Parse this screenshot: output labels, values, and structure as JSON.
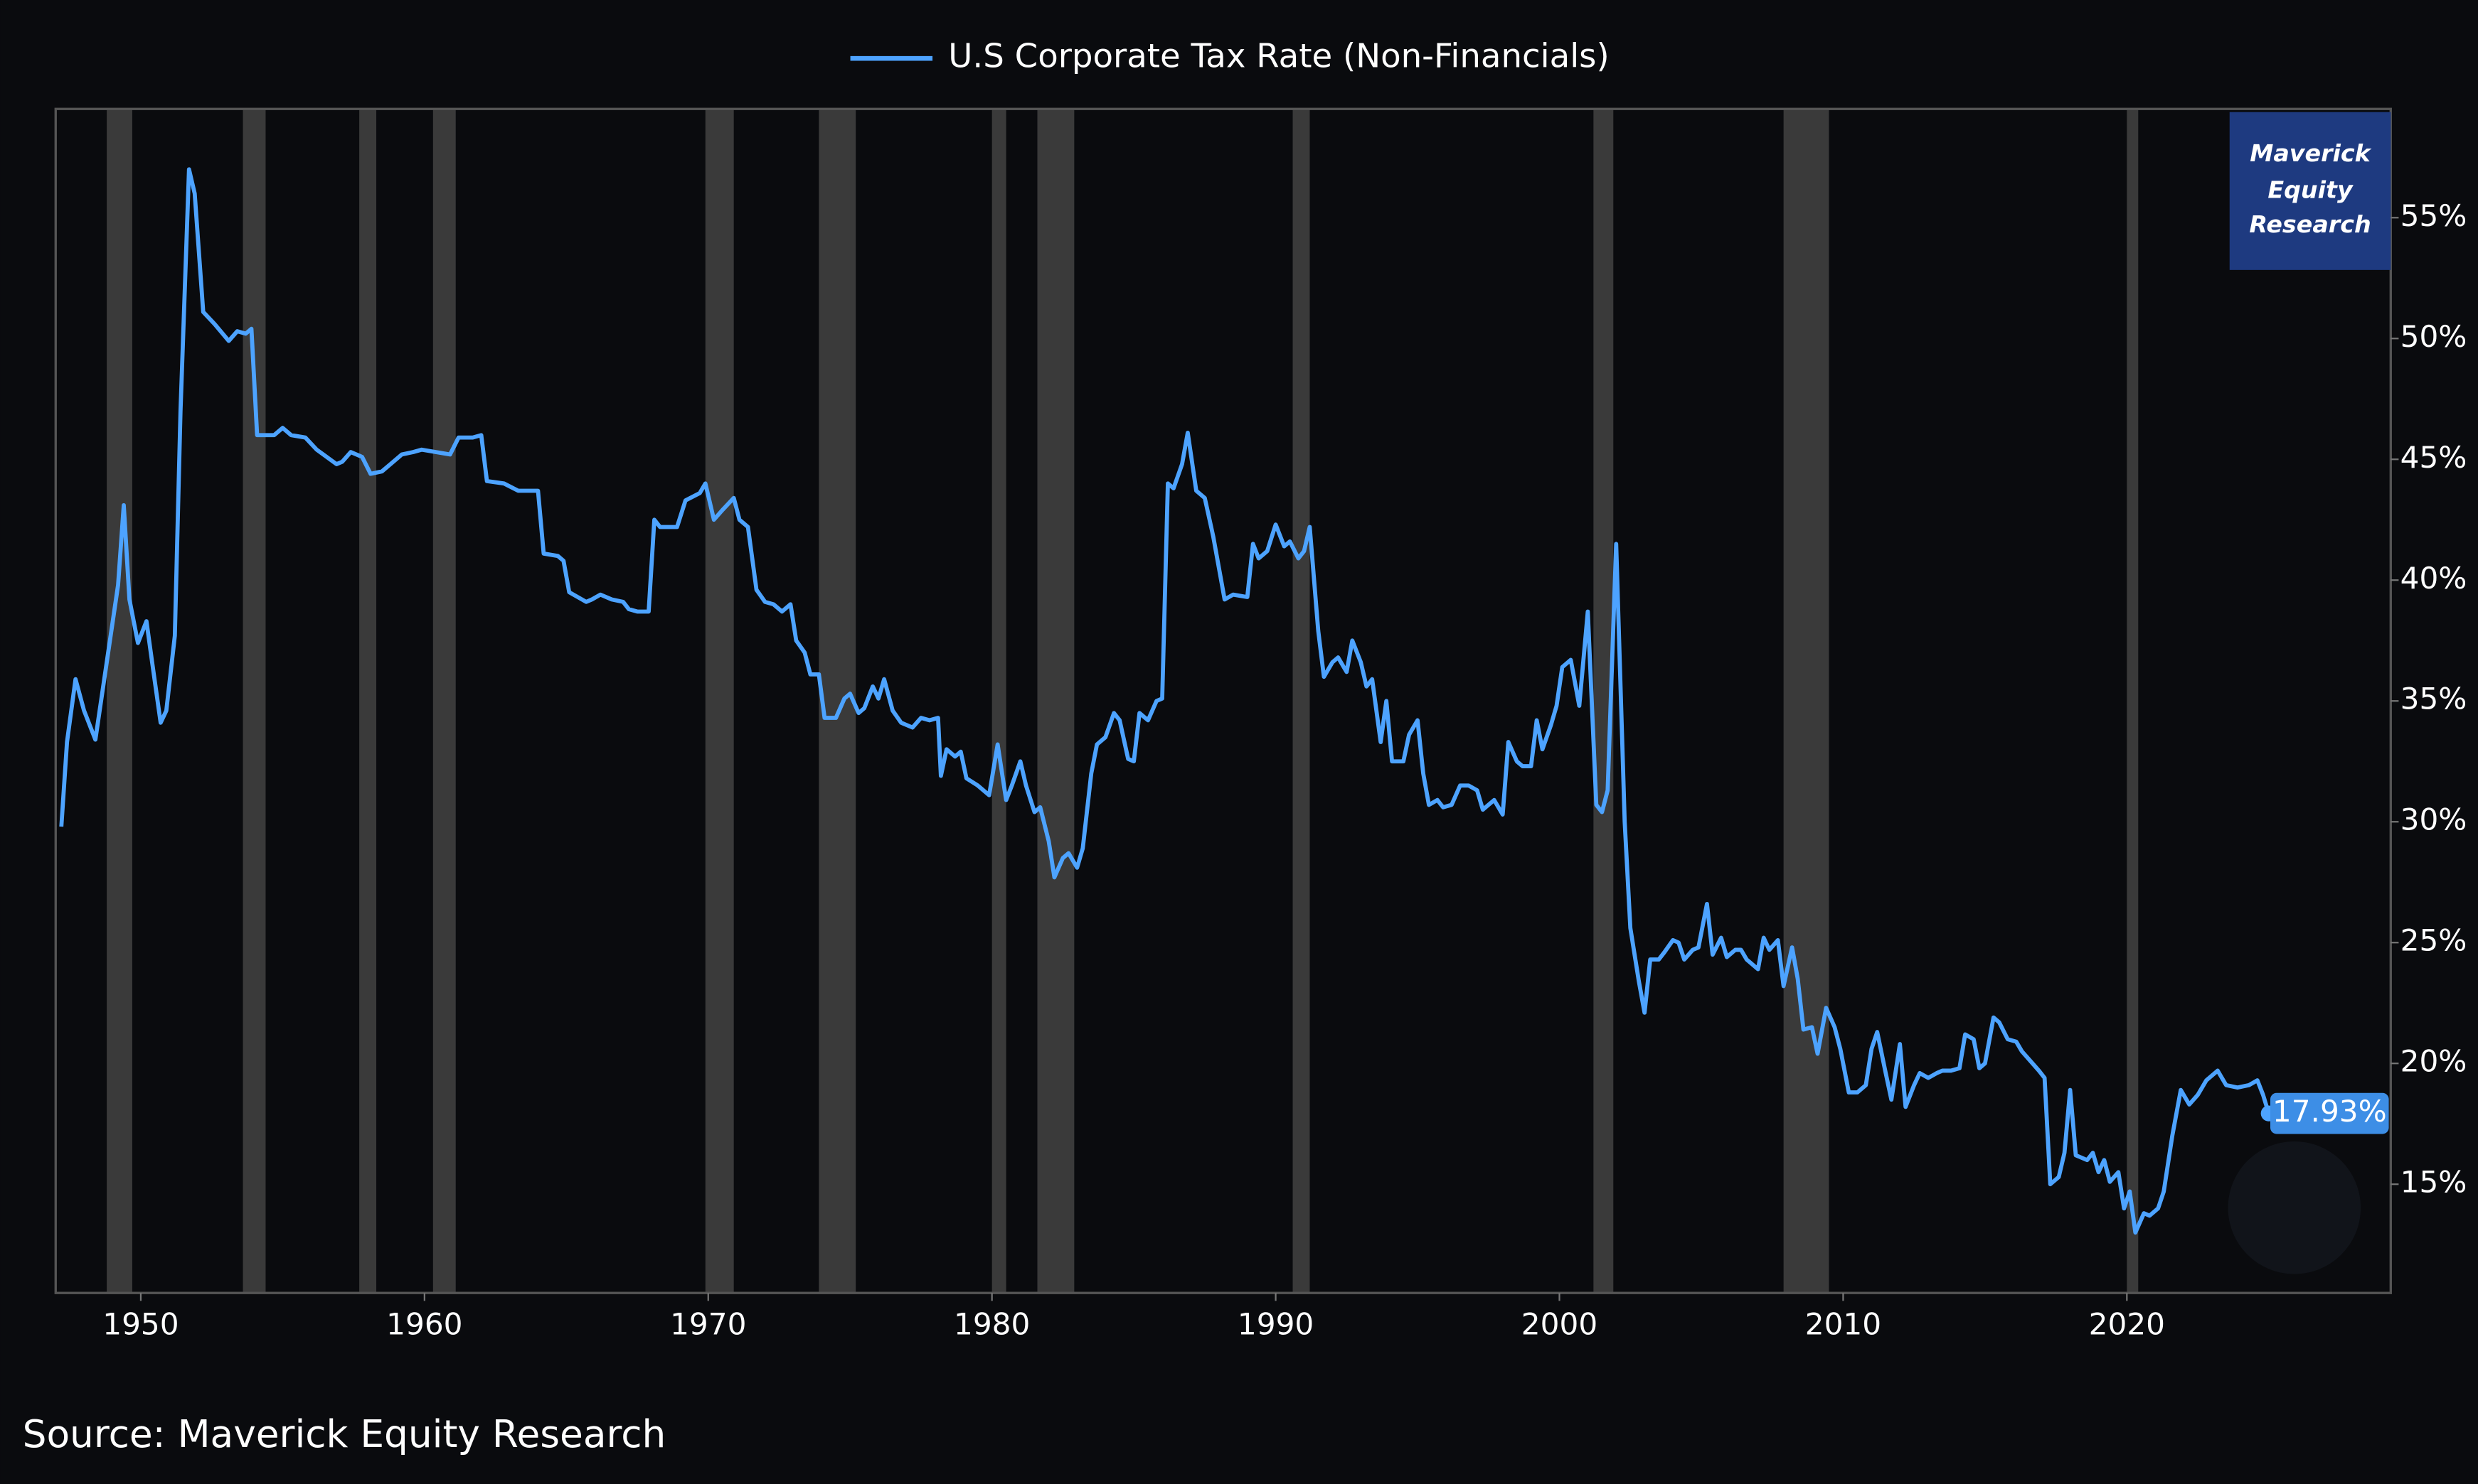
{
  "chart_data": {
    "type": "line",
    "legend_label": "U.S Corporate Tax Rate (Non-Financials)",
    "source": "Source: Maverick Equity Research",
    "watermark": [
      "Maverick",
      "Equity",
      "Research"
    ],
    "end_label": "17.93%",
    "series": [
      {
        "name": "U.S Corporate Tax Rate (Non-Financials)",
        "color": "#4da3ff",
        "x": [
          1947.2,
          1947.4,
          1947.7,
          1948.0,
          1948.4,
          1948.8,
          1949.2,
          1949.4,
          1949.6,
          1949.9,
          1950.2,
          1950.4,
          1950.7,
          1950.9,
          1951.2,
          1951.4,
          1951.7,
          1951.9,
          1952.2,
          1952.6,
          1953.1,
          1953.4,
          1953.7,
          1953.9,
          1954.1,
          1954.7,
          1955.0,
          1955.3,
          1955.8,
          1956.2,
          1956.9,
          1957.1,
          1957.4,
          1957.8,
          1958.1,
          1958.5,
          1958.9,
          1959.2,
          1959.6,
          1959.9,
          1960.4,
          1960.9,
          1961.2,
          1961.7,
          1962.0,
          1962.2,
          1962.8,
          1963.3,
          1964.0,
          1964.2,
          1964.7,
          1964.9,
          1965.1,
          1965.7,
          1965.9,
          1966.2,
          1966.6,
          1967.0,
          1967.2,
          1967.5,
          1967.9,
          1968.1,
          1968.3,
          1968.9,
          1969.2,
          1969.7,
          1969.9,
          1970.2,
          1970.5,
          1970.9,
          1971.1,
          1971.4,
          1971.7,
          1972.0,
          1972.3,
          1972.6,
          1972.9,
          1973.1,
          1973.4,
          1973.6,
          1973.9,
          1974.1,
          1974.5,
          1974.8,
          1975.0,
          1975.3,
          1975.5,
          1975.8,
          1976.0,
          1976.2,
          1976.5,
          1976.8,
          1977.2,
          1977.5,
          1977.8,
          1978.1,
          1978.2,
          1978.4,
          1978.7,
          1978.9,
          1979.1,
          1979.5,
          1979.9,
          1980.2,
          1980.5,
          1980.7,
          1981.0,
          1981.2,
          1981.5,
          1981.7,
          1982.0,
          1982.2,
          1982.5,
          1982.7,
          1983.0,
          1983.2,
          1983.5,
          1983.7,
          1984.0,
          1984.3,
          1984.5,
          1984.8,
          1985.0,
          1985.2,
          1985.5,
          1985.8,
          1986.0,
          1986.2,
          1986.4,
          1986.7,
          1986.9,
          1987.2,
          1987.5,
          1987.8,
          1988.2,
          1988.5,
          1989.0,
          1989.2,
          1989.4,
          1989.7,
          1990.0,
          1990.3,
          1990.5,
          1990.8,
          1991.0,
          1991.2,
          1991.5,
          1991.7,
          1992.0,
          1992.2,
          1992.5,
          1992.7,
          1993.0,
          1993.2,
          1993.4,
          1993.7,
          1993.9,
          1994.1,
          1994.5,
          1994.7,
          1995.0,
          1995.2,
          1995.4,
          1995.7,
          1995.9,
          1996.2,
          1996.5,
          1996.8,
          1997.1,
          1997.3,
          1997.5,
          1997.7,
          1998.0,
          1998.2,
          1998.5,
          1998.7,
          1999.0,
          1999.2,
          1999.4,
          1999.7,
          1999.9,
          2000.1,
          2000.4,
          2000.7,
          2001.0,
          2001.3,
          2001.5,
          2001.7,
          2002.0,
          2002.3,
          2002.5,
          2002.8,
          2003.0,
          2003.2,
          2003.5,
          2003.7,
          2004.0,
          2004.2,
          2004.4,
          2004.7,
          2004.9,
          2005.2,
          2005.4,
          2005.7,
          2005.9,
          2006.2,
          2006.4,
          2006.6,
          2007.0,
          2007.2,
          2007.4,
          2007.7,
          2007.9,
          2008.2,
          2008.4,
          2008.6,
          2008.9,
          2009.1,
          2009.4,
          2009.7,
          2009.9,
          2010.2,
          2010.5,
          2010.8,
          2011.0,
          2011.2,
          2011.5,
          2011.7,
          2012.0,
          2012.2,
          2012.5,
          2012.7,
          2013.0,
          2013.3,
          2013.5,
          2013.8,
          2014.1,
          2014.3,
          2014.6,
          2014.8,
          2015.0,
          2015.3,
          2015.5,
          2015.8,
          2016.1,
          2016.3,
          2016.6,
          2016.9,
          2017.1,
          2017.3,
          2017.6,
          2017.8,
          2018.0,
          2018.2,
          2018.6,
          2018.8,
          2019.0,
          2019.2,
          2019.4,
          2019.7,
          2019.9,
          2020.1,
          2020.3,
          2020.6,
          2020.8,
          2021.1,
          2021.3,
          2021.6,
          2021.9,
          2022.2,
          2022.5,
          2022.8,
          2023.2,
          2023.5,
          2023.9,
          2024.3,
          2024.6,
          2024.8,
          2025.0
        ],
        "values": [
          29.8,
          33.3,
          35.9,
          34.6,
          33.4,
          36.6,
          39.8,
          43.1,
          39.2,
          37.4,
          38.3,
          36.6,
          34.1,
          34.6,
          37.7,
          47.0,
          57.0,
          56.0,
          51.1,
          50.6,
          49.9,
          50.3,
          50.2,
          50.4,
          46.0,
          46.0,
          46.3,
          46.0,
          45.9,
          45.4,
          44.8,
          44.9,
          45.3,
          45.1,
          44.4,
          44.5,
          44.9,
          45.2,
          45.3,
          45.4,
          45.3,
          45.2,
          45.9,
          45.9,
          46.0,
          44.1,
          44.0,
          43.7,
          43.7,
          41.1,
          41.0,
          40.8,
          39.5,
          39.1,
          39.2,
          39.4,
          39.2,
          39.1,
          38.8,
          38.7,
          38.7,
          42.5,
          42.2,
          42.2,
          43.3,
          43.6,
          44.0,
          42.5,
          42.9,
          43.4,
          42.5,
          42.2,
          39.6,
          39.1,
          39.0,
          38.7,
          39.0,
          37.5,
          37.0,
          36.1,
          36.1,
          34.3,
          34.3,
          35.1,
          35.3,
          34.5,
          34.7,
          35.6,
          35.1,
          35.9,
          34.6,
          34.1,
          33.9,
          34.3,
          34.2,
          34.3,
          31.9,
          33.0,
          32.7,
          32.9,
          31.8,
          31.5,
          31.1,
          33.2,
          30.9,
          31.5,
          32.5,
          31.5,
          30.4,
          30.6,
          29.2,
          27.7,
          28.5,
          28.7,
          28.1,
          28.9,
          32.0,
          33.2,
          33.5,
          34.5,
          34.2,
          32.6,
          32.5,
          34.5,
          34.2,
          35.0,
          35.1,
          44.0,
          43.8,
          44.8,
          46.1,
          43.7,
          43.4,
          41.8,
          39.2,
          39.4,
          39.3,
          41.5,
          40.9,
          41.2,
          42.3,
          41.4,
          41.6,
          40.9,
          41.2,
          42.2,
          37.9,
          36.0,
          36.6,
          36.8,
          36.2,
          37.5,
          36.6,
          35.6,
          35.9,
          33.3,
          35.0,
          32.5,
          32.5,
          33.6,
          34.2,
          32.0,
          30.7,
          30.9,
          30.6,
          30.7,
          31.5,
          31.5,
          31.3,
          30.5,
          30.7,
          30.9,
          30.3,
          33.3,
          32.5,
          32.3,
          32.3,
          34.2,
          33.0,
          34.0,
          34.8,
          36.4,
          36.7,
          34.8,
          38.7,
          30.7,
          30.4,
          31.3,
          41.5,
          30.0,
          25.6,
          23.4,
          22.1,
          24.3,
          24.3,
          24.6,
          25.1,
          25.0,
          24.3,
          24.7,
          24.8,
          26.6,
          24.5,
          25.2,
          24.4,
          24.7,
          24.7,
          24.3,
          23.9,
          25.2,
          24.7,
          25.1,
          23.2,
          24.8,
          23.5,
          21.4,
          21.5,
          20.4,
          22.3,
          21.5,
          20.6,
          18.8,
          18.8,
          19.1,
          20.6,
          21.3,
          19.6,
          18.5,
          20.8,
          18.2,
          19.1,
          19.6,
          19.4,
          19.6,
          19.7,
          19.7,
          19.8,
          21.2,
          21.0,
          19.8,
          20.0,
          21.9,
          21.7,
          21.0,
          20.9,
          20.5,
          20.1,
          19.7,
          19.4,
          15.0,
          15.3,
          16.3,
          18.9,
          16.2,
          16.0,
          16.3,
          15.5,
          16.0,
          15.1,
          15.5,
          14.0,
          14.7,
          13.0,
          13.8,
          13.7,
          14.0,
          14.7,
          17.0,
          18.9,
          18.3,
          18.7,
          19.3,
          19.7,
          19.1,
          19.0,
          19.1,
          19.3,
          18.7,
          17.93
        ]
      }
    ],
    "recessions": [
      [
        1948.8,
        1949.7
      ],
      [
        1953.6,
        1954.4
      ],
      [
        1957.7,
        1958.3
      ],
      [
        1960.3,
        1961.1
      ],
      [
        1969.9,
        1970.9
      ],
      [
        1973.9,
        1975.2
      ],
      [
        1980.0,
        1980.5
      ],
      [
        1981.6,
        1982.9
      ],
      [
        1990.6,
        1991.2
      ],
      [
        2001.2,
        2001.9
      ],
      [
        2007.9,
        2009.5
      ],
      [
        2020.0,
        2020.4
      ]
    ],
    "recession_color": "#3a3a3a",
    "xlim": [
      1947,
      2029.3
    ],
    "xticks": [
      1950,
      1960,
      1970,
      1980,
      1990,
      2000,
      2010,
      2020
    ],
    "ylim": [
      10.5,
      59.5
    ],
    "yticks": [
      {
        "value": 15,
        "label": "15%"
      },
      {
        "value": 20,
        "label": "20%"
      },
      {
        "value": 25,
        "label": "25%"
      },
      {
        "value": 30,
        "label": "30%"
      },
      {
        "value": 35,
        "label": "35%"
      },
      {
        "value": 40,
        "label": "40%"
      },
      {
        "value": 45,
        "label": "45%"
      },
      {
        "value": 50,
        "label": "50%"
      },
      {
        "value": 55,
        "label": "55%"
      }
    ],
    "y_axis_side": "right",
    "grid": false
  }
}
